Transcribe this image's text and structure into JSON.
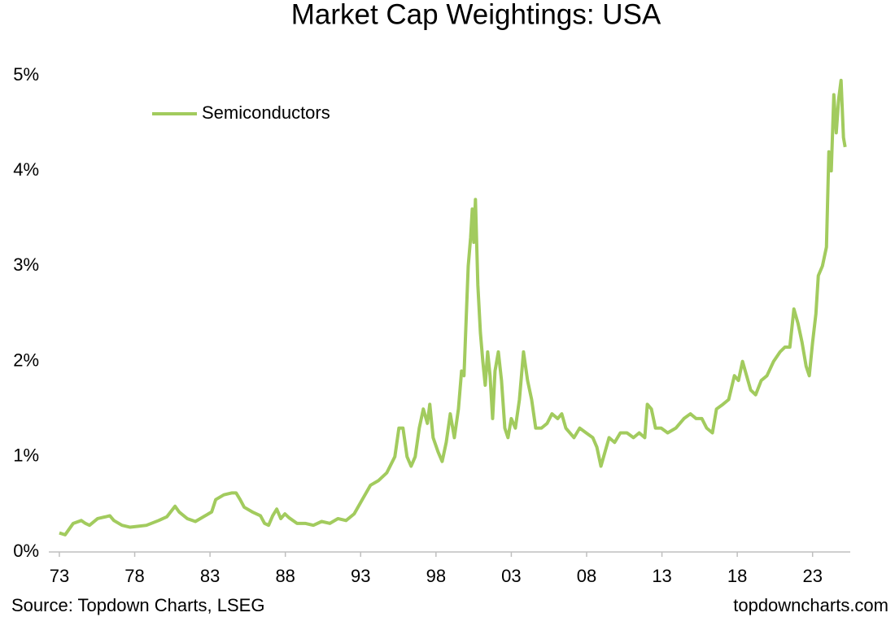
{
  "chart_data": {
    "type": "line",
    "title": "Market Cap Weightings: USA",
    "source": "Source: Topdown Charts, LSEG",
    "watermark": "topdowncharts.com",
    "legend": "top-left",
    "x": [
      1973.0,
      1973.38,
      1973.92,
      1974.46,
      1974.73,
      1975.0,
      1975.54,
      1976.08,
      1976.35,
      1976.62,
      1977.16,
      1977.7,
      1978.24,
      1978.78,
      1979.59,
      1980.14,
      1980.68,
      1980.95,
      1981.49,
      1982.03,
      1982.57,
      1983.11,
      1983.38,
      1983.92,
      1984.46,
      1984.73,
      1985.0,
      1985.27,
      1985.81,
      1986.35,
      1986.62,
      1986.89,
      1987.16,
      1987.43,
      1987.7,
      1987.97,
      1988.24,
      1988.78,
      1989.32,
      1989.86,
      1990.41,
      1990.95,
      1991.49,
      1992.03,
      1992.57,
      1993.11,
      1993.65,
      1994.19,
      1994.73,
      1995.27,
      1995.54,
      1995.81,
      1996.08,
      1996.35,
      1996.62,
      1996.89,
      1997.16,
      1997.43,
      1997.59,
      1997.81,
      1998.14,
      1998.41,
      1998.68,
      1998.95,
      1999.22,
      1999.49,
      1999.7,
      1999.86,
      2000.14,
      2000.3,
      2000.41,
      2000.51,
      2000.62,
      2000.78,
      2000.95,
      2001.11,
      2001.27,
      2001.43,
      2001.59,
      2001.76,
      2001.92,
      2002.14,
      2002.35,
      2002.57,
      2002.78,
      2003.0,
      2003.27,
      2003.54,
      2003.81,
      2004.08,
      2004.35,
      2004.62,
      2005.0,
      2005.38,
      2005.7,
      2006.08,
      2006.35,
      2006.62,
      2007.16,
      2007.54,
      2007.97,
      2008.41,
      2008.68,
      2008.95,
      2009.22,
      2009.49,
      2009.86,
      2010.24,
      2010.68,
      2011.11,
      2011.49,
      2011.86,
      2012.03,
      2012.3,
      2012.57,
      2012.95,
      2013.38,
      2013.92,
      2014.46,
      2014.89,
      2015.27,
      2015.65,
      2015.97,
      2016.35,
      2016.62,
      2017.05,
      2017.43,
      2017.81,
      2018.08,
      2018.35,
      2018.62,
      2018.89,
      2019.22,
      2019.59,
      2019.97,
      2020.41,
      2020.84,
      2021.16,
      2021.49,
      2021.76,
      2022.03,
      2022.3,
      2022.57,
      2022.78,
      2023.0,
      2023.22,
      2023.38,
      2023.65,
      2023.92,
      2024.08,
      2024.24,
      2024.41,
      2024.57,
      2024.73,
      2024.89,
      2025.05,
      2025.16
    ],
    "series": [
      {
        "name": "Semiconductors",
        "color": "#a2cb5e",
        "values": [
          0.2,
          0.18,
          0.3,
          0.33,
          0.3,
          0.28,
          0.35,
          0.37,
          0.38,
          0.33,
          0.28,
          0.26,
          0.27,
          0.28,
          0.33,
          0.37,
          0.48,
          0.42,
          0.35,
          0.32,
          0.37,
          0.42,
          0.55,
          0.6,
          0.62,
          0.62,
          0.55,
          0.47,
          0.42,
          0.38,
          0.3,
          0.28,
          0.38,
          0.45,
          0.35,
          0.4,
          0.36,
          0.3,
          0.3,
          0.28,
          0.32,
          0.3,
          0.35,
          0.33,
          0.4,
          0.55,
          0.7,
          0.75,
          0.83,
          1.0,
          1.3,
          1.3,
          1.0,
          0.9,
          1.0,
          1.3,
          1.5,
          1.35,
          1.55,
          1.2,
          1.05,
          0.95,
          1.15,
          1.45,
          1.2,
          1.5,
          1.9,
          1.85,
          3.0,
          3.3,
          3.6,
          3.25,
          3.7,
          2.8,
          2.3,
          2.0,
          1.75,
          2.1,
          1.85,
          1.4,
          1.9,
          2.1,
          1.8,
          1.3,
          1.2,
          1.4,
          1.3,
          1.6,
          2.1,
          1.8,
          1.6,
          1.3,
          1.3,
          1.35,
          1.45,
          1.4,
          1.45,
          1.3,
          1.2,
          1.3,
          1.25,
          1.2,
          1.1,
          0.9,
          1.05,
          1.2,
          1.15,
          1.25,
          1.25,
          1.2,
          1.25,
          1.2,
          1.55,
          1.5,
          1.3,
          1.3,
          1.25,
          1.3,
          1.4,
          1.45,
          1.4,
          1.4,
          1.3,
          1.25,
          1.5,
          1.55,
          1.6,
          1.85,
          1.8,
          2.0,
          1.85,
          1.7,
          1.65,
          1.8,
          1.85,
          2.0,
          2.1,
          2.15,
          2.15,
          2.55,
          2.4,
          2.2,
          1.95,
          1.85,
          2.2,
          2.5,
          2.9,
          3.0,
          3.2,
          4.2,
          4.0,
          4.8,
          4.4,
          4.75,
          4.95,
          4.35,
          4.25
        ]
      }
    ],
    "xlim": [
      1972.3,
      2025.5
    ],
    "xticks": [
      {
        "value": 1973,
        "label": "73"
      },
      {
        "value": 1978,
        "label": "78"
      },
      {
        "value": 1983,
        "label": "83"
      },
      {
        "value": 1988,
        "label": "88"
      },
      {
        "value": 1993,
        "label": "93"
      },
      {
        "value": 1998,
        "label": "98"
      },
      {
        "value": 2003,
        "label": "03"
      },
      {
        "value": 2008,
        "label": "08"
      },
      {
        "value": 2013,
        "label": "13"
      },
      {
        "value": 2018,
        "label": "18"
      },
      {
        "value": 2023,
        "label": "23"
      }
    ],
    "ylim": [
      0,
      5
    ],
    "yticks": [
      {
        "value": 0,
        "label": "0%"
      },
      {
        "value": 1,
        "label": "1%"
      },
      {
        "value": 2,
        "label": "2%"
      },
      {
        "value": 3,
        "label": "3%"
      },
      {
        "value": 4,
        "label": "4%"
      },
      {
        "value": 5,
        "label": "5%"
      }
    ],
    "grid": false
  }
}
